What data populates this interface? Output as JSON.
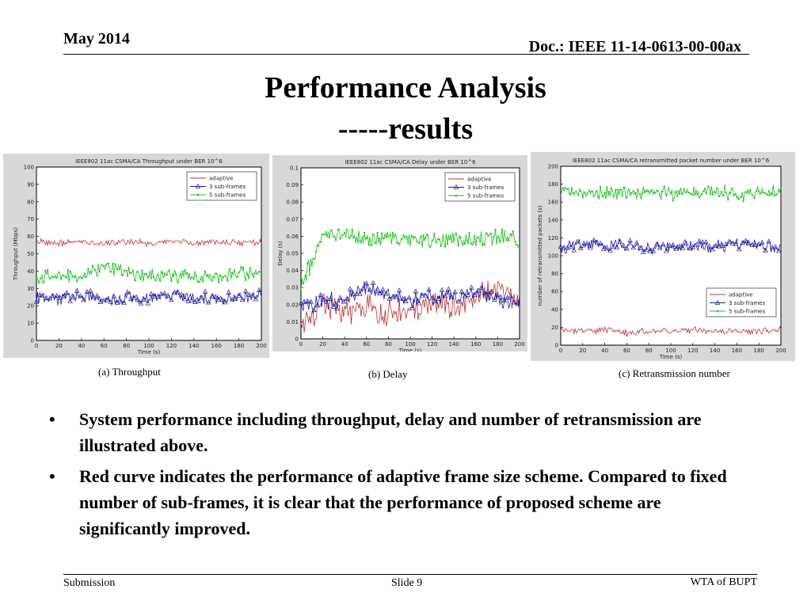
{
  "header": {
    "date": "May 2014",
    "doc": "Doc.: IEEE 11-14-0613-00-00ax"
  },
  "title": {
    "line1": "Performance Analysis",
    "line2": "-----results"
  },
  "figures": [
    {
      "caption": "(a) Throughput"
    },
    {
      "caption": "(b) Delay"
    },
    {
      "caption": "(c) Retransmission number"
    }
  ],
  "bullets": [
    {
      "marker": "•",
      "text": "System performance including throughput, delay and number of retransmission are illustrated above."
    },
    {
      "marker": "•",
      "text": "Red curve indicates the performance of adaptive frame size scheme. Compared to fixed number of sub-frames, it is clear that the performance of proposed scheme are significantly improved."
    }
  ],
  "footer": {
    "left": "Submission",
    "center": "Slide 9",
    "right": "WTA of BUPT"
  },
  "chart_data": [
    {
      "type": "line",
      "title": "IEEE802 11ac CSMA/CA Throughput under BER 10^6",
      "xlabel": "Time (s)",
      "ylabel": "Throughput (Mbps)",
      "xlim": [
        0,
        200
      ],
      "ylim": [
        0,
        100
      ],
      "xticks": [
        0,
        20,
        40,
        60,
        80,
        100,
        120,
        140,
        160,
        180,
        200
      ],
      "yticks": [
        0,
        10,
        20,
        30,
        40,
        50,
        60,
        70,
        80,
        90,
        100
      ],
      "legend_position": "top-right",
      "grid": false,
      "series": [
        {
          "name": "adaptive",
          "color": "#c03030",
          "marker": "none",
          "x": [
            0,
            20,
            40,
            60,
            80,
            100,
            120,
            140,
            160,
            180,
            200
          ],
          "y": [
            57,
            56,
            57,
            56,
            57,
            56,
            57,
            56,
            57,
            56,
            57
          ]
        },
        {
          "name": "3 sub-frames",
          "color": "#1c1ca0",
          "marker": "triangle",
          "x": [
            0,
            20,
            40,
            60,
            80,
            100,
            120,
            140,
            160,
            180,
            200
          ],
          "y": [
            25,
            24,
            26,
            23,
            25,
            24,
            26,
            25,
            24,
            25,
            27
          ]
        },
        {
          "name": "5 sub-frames",
          "color": "#18c018",
          "marker": "dot",
          "x": [
            0,
            20,
            40,
            60,
            80,
            100,
            120,
            140,
            160,
            180,
            200
          ],
          "y": [
            36,
            38,
            37,
            44,
            38,
            37,
            38,
            36,
            37,
            38,
            40
          ]
        }
      ]
    },
    {
      "type": "line",
      "title": "IEEE802 11ac CSMA/CA Delay under BER 10^6",
      "xlabel": "Time (s)",
      "ylabel": "Delay (s)",
      "xlim": [
        0,
        200
      ],
      "ylim": [
        0,
        0.1
      ],
      "xticks": [
        0,
        20,
        40,
        60,
        80,
        100,
        120,
        140,
        160,
        180,
        200
      ],
      "yticks": [
        0,
        0.01,
        0.02,
        0.03,
        0.04,
        0.05,
        0.06,
        0.07,
        0.08,
        0.09,
        0.1
      ],
      "legend_position": "top-right",
      "grid": false,
      "series": [
        {
          "name": "adaptive",
          "color": "#c03030",
          "marker": "none",
          "x": [
            0,
            20,
            40,
            60,
            80,
            100,
            120,
            140,
            160,
            180,
            200
          ],
          "y": [
            0.01,
            0.02,
            0.015,
            0.018,
            0.016,
            0.017,
            0.02,
            0.018,
            0.025,
            0.03,
            0.02
          ]
        },
        {
          "name": "3 sub-frames",
          "color": "#1c1ca0",
          "marker": "triangle",
          "x": [
            0,
            20,
            40,
            60,
            80,
            100,
            120,
            140,
            160,
            180,
            200
          ],
          "y": [
            0.018,
            0.022,
            0.023,
            0.03,
            0.025,
            0.022,
            0.024,
            0.025,
            0.027,
            0.023,
            0.021
          ]
        },
        {
          "name": "5 sub-frames",
          "color": "#18c018",
          "marker": "dot",
          "x": [
            0,
            20,
            40,
            60,
            80,
            100,
            120,
            140,
            160,
            180,
            200
          ],
          "y": [
            0.03,
            0.06,
            0.062,
            0.058,
            0.06,
            0.057,
            0.059,
            0.058,
            0.057,
            0.06,
            0.058
          ]
        }
      ]
    },
    {
      "type": "line",
      "title": "IEEE802 11ac CSMA/CA retransmitted packet number under BER 10^6",
      "xlabel": "Time (s)",
      "ylabel": "number of retransmitted packets (s)",
      "xlim": [
        0,
        200
      ],
      "ylim": [
        0,
        200
      ],
      "xticks": [
        0,
        20,
        40,
        60,
        80,
        100,
        120,
        140,
        160,
        180,
        200
      ],
      "yticks": [
        0,
        20,
        40,
        60,
        80,
        100,
        120,
        140,
        160,
        180,
        200
      ],
      "legend_position": "bottom-right",
      "grid": false,
      "series": [
        {
          "name": "adaptive",
          "color": "#c03030",
          "marker": "none",
          "x": [
            0,
            20,
            40,
            60,
            80,
            100,
            120,
            140,
            160,
            180,
            200
          ],
          "y": [
            18,
            15,
            17,
            14,
            16,
            15,
            17,
            15,
            16,
            15,
            18
          ]
        },
        {
          "name": "3 sub-frames",
          "color": "#1c1ca0",
          "marker": "triangle",
          "x": [
            0,
            20,
            40,
            60,
            80,
            100,
            120,
            140,
            160,
            180,
            200
          ],
          "y": [
            108,
            112,
            110,
            113,
            109,
            112,
            111,
            110,
            113,
            112,
            110
          ]
        },
        {
          "name": "5 sub-frames",
          "color": "#18c018",
          "marker": "dot",
          "x": [
            0,
            20,
            40,
            60,
            80,
            100,
            120,
            140,
            160,
            180,
            200
          ],
          "y": [
            172,
            170,
            168,
            172,
            170,
            169,
            171,
            173,
            168,
            170,
            172
          ]
        }
      ]
    }
  ]
}
